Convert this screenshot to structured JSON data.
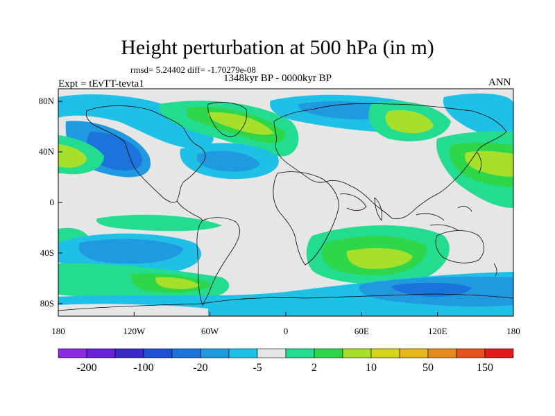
{
  "title": "Height perturbation at 500 hPa (in m)",
  "stats": "rmsd= 5.24402 diff= -1.70279e-08",
  "period": "1348kyr BP - 0000kyr BP",
  "experiment": "Expt = tEvTT-tevta1",
  "season": "ANN",
  "lat_labels": [
    "80N",
    "40N",
    "0",
    "40S",
    "80S"
  ],
  "lat_values": [
    80,
    40,
    0,
    -40,
    -80
  ],
  "lon_labels": [
    "180",
    "120W",
    "60W",
    "0",
    "60E",
    "120E",
    "180"
  ],
  "lon_values": [
    -180,
    -120,
    -60,
    0,
    60,
    120,
    180
  ],
  "colorbar": {
    "colors": [
      "#8a2be2",
      "#6a1fd8",
      "#3a2ac8",
      "#1f4fd6",
      "#1a74dc",
      "#1f9ae0",
      "#1fc0e6",
      "#e6e6e6",
      "#24dc90",
      "#2ed64a",
      "#a6e02a",
      "#d6d61a",
      "#e6b61a",
      "#e68a1a",
      "#e6521a",
      "#e21a1a"
    ],
    "tick_labels": [
      "-200",
      "-100",
      "-20",
      "-5",
      "2",
      "10",
      "50",
      "150"
    ]
  },
  "colors": {
    "background_field": "#e6e6e6",
    "light_blue": "#1fc0e6",
    "mid_blue": "#1f9ae0",
    "dark_blue": "#1a74dc",
    "light_green": "#24dc90",
    "green": "#2ed64a",
    "yellow_green": "#a6e02a",
    "coastline": "#000000"
  }
}
